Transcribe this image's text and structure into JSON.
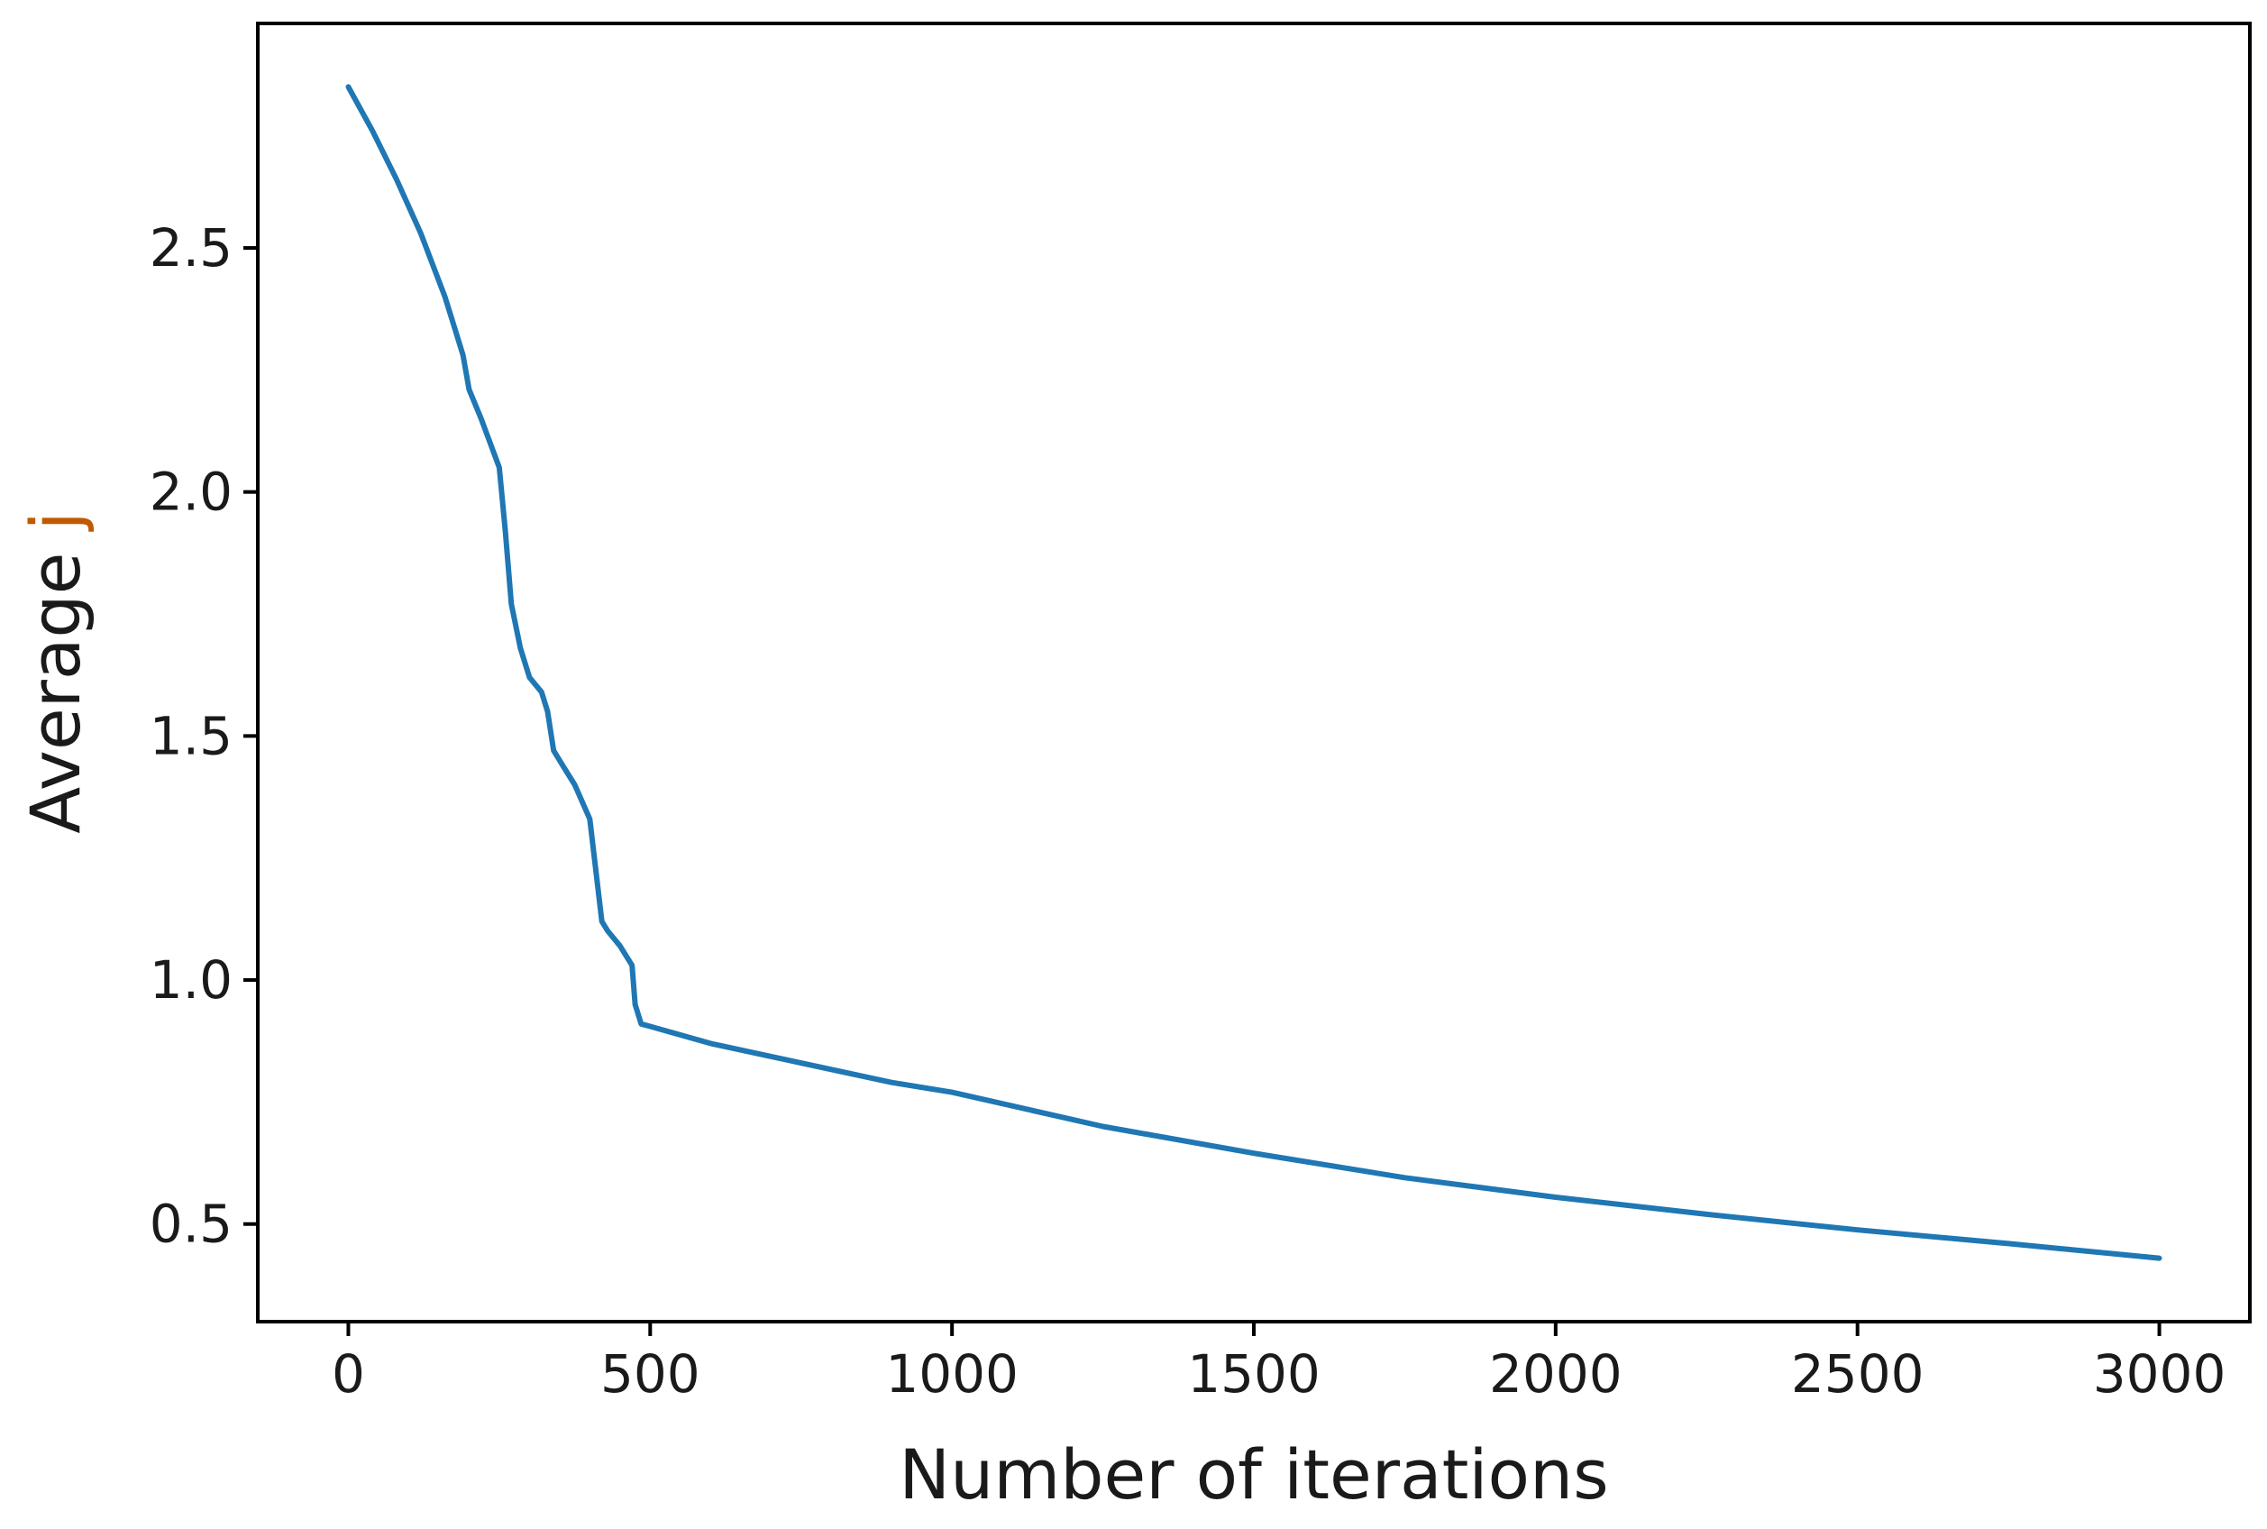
{
  "chart_data": {
    "type": "line",
    "title": "",
    "xlabel": "Number of iterations",
    "ylabel_parts": {
      "main": "Average",
      "accent": " j"
    },
    "xlim": [
      -150,
      3150
    ],
    "ylim": [
      0.3,
      2.96
    ],
    "xticks": [
      0,
      500,
      1000,
      1500,
      2000,
      2500,
      3000
    ],
    "xtick_labels": [
      "0",
      "500",
      "1000",
      "1500",
      "2000",
      "2500",
      "3000"
    ],
    "yticks": [
      0.5,
      1.0,
      1.5,
      2.0,
      2.5
    ],
    "ytick_labels": [
      "0.5",
      "1.0",
      "1.5",
      "2.0",
      "2.5"
    ],
    "grid": false,
    "legend": "none",
    "series": [
      {
        "color": "#1f77b4",
        "x": [
          0,
          40,
          80,
          120,
          160,
          175,
          190,
          200,
          220,
          250,
          260,
          270,
          285,
          300,
          320,
          330,
          340,
          355,
          375,
          400,
          420,
          430,
          450,
          470,
          475,
          485,
          500,
          600,
          750,
          900,
          1000,
          1250,
          1500,
          1750,
          2000,
          2250,
          2500,
          2750,
          3000
        ],
        "y": [
          2.83,
          2.74,
          2.64,
          2.53,
          2.4,
          2.34,
          2.28,
          2.21,
          2.15,
          2.05,
          1.92,
          1.77,
          1.68,
          1.62,
          1.59,
          1.55,
          1.47,
          1.44,
          1.4,
          1.33,
          1.12,
          1.1,
          1.07,
          1.03,
          0.95,
          0.91,
          0.905,
          0.87,
          0.83,
          0.79,
          0.77,
          0.7,
          0.645,
          0.595,
          0.555,
          0.52,
          0.488,
          0.46,
          0.43
        ]
      }
    ]
  }
}
